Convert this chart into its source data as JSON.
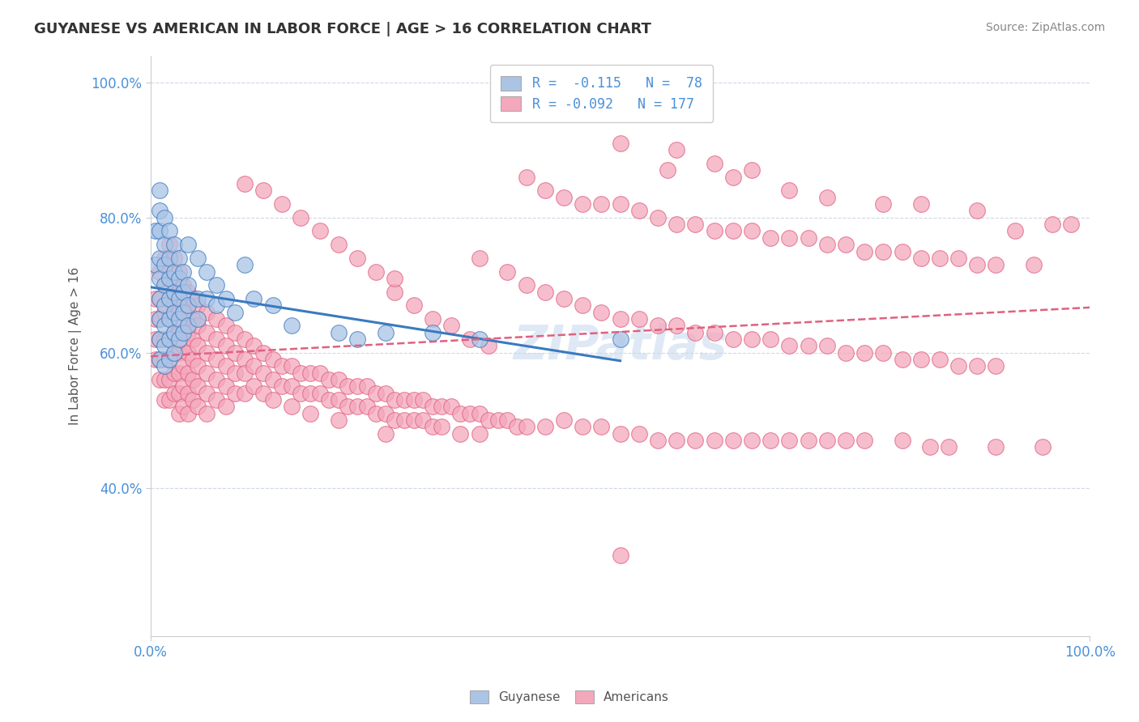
{
  "title": "GUYANESE VS AMERICAN IN LABOR FORCE | AGE > 16 CORRELATION CHART",
  "source": "Source: ZipAtlas.com",
  "ylabel": "In Labor Force | Age > 16",
  "xlim": [
    0.0,
    1.0
  ],
  "ylim": [
    0.18,
    1.04
  ],
  "x_tick_labels": [
    "0.0%",
    "100.0%"
  ],
  "y_tick_labels": [
    "40.0%",
    "60.0%",
    "80.0%",
    "100.0%"
  ],
  "y_tick_positions": [
    0.4,
    0.6,
    0.8,
    1.0
  ],
  "guyanese_color": "#aac4e6",
  "americans_color": "#f4a8bc",
  "trendline_guyanese_color": "#3a7abf",
  "trendline_americans_color": "#e06080",
  "background_color": "#ffffff",
  "grid_color": "#d0d8e8",
  "watermark": "ZIPatlas",
  "guyanese_points": [
    [
      0.005,
      0.78
    ],
    [
      0.005,
      0.73
    ],
    [
      0.01,
      0.84
    ],
    [
      0.01,
      0.81
    ],
    [
      0.01,
      0.78
    ],
    [
      0.01,
      0.74
    ],
    [
      0.01,
      0.71
    ],
    [
      0.01,
      0.68
    ],
    [
      0.01,
      0.65
    ],
    [
      0.01,
      0.62
    ],
    [
      0.01,
      0.59
    ],
    [
      0.015,
      0.8
    ],
    [
      0.015,
      0.76
    ],
    [
      0.015,
      0.73
    ],
    [
      0.015,
      0.7
    ],
    [
      0.015,
      0.67
    ],
    [
      0.015,
      0.64
    ],
    [
      0.015,
      0.61
    ],
    [
      0.015,
      0.58
    ],
    [
      0.02,
      0.78
    ],
    [
      0.02,
      0.74
    ],
    [
      0.02,
      0.71
    ],
    [
      0.02,
      0.68
    ],
    [
      0.02,
      0.65
    ],
    [
      0.02,
      0.62
    ],
    [
      0.02,
      0.59
    ],
    [
      0.025,
      0.76
    ],
    [
      0.025,
      0.72
    ],
    [
      0.025,
      0.69
    ],
    [
      0.025,
      0.66
    ],
    [
      0.025,
      0.63
    ],
    [
      0.025,
      0.6
    ],
    [
      0.03,
      0.74
    ],
    [
      0.03,
      0.71
    ],
    [
      0.03,
      0.68
    ],
    [
      0.03,
      0.65
    ],
    [
      0.03,
      0.62
    ],
    [
      0.035,
      0.72
    ],
    [
      0.035,
      0.69
    ],
    [
      0.035,
      0.66
    ],
    [
      0.035,
      0.63
    ],
    [
      0.04,
      0.76
    ],
    [
      0.04,
      0.7
    ],
    [
      0.04,
      0.67
    ],
    [
      0.04,
      0.64
    ],
    [
      0.05,
      0.74
    ],
    [
      0.05,
      0.68
    ],
    [
      0.05,
      0.65
    ],
    [
      0.06,
      0.72
    ],
    [
      0.06,
      0.68
    ],
    [
      0.07,
      0.7
    ],
    [
      0.07,
      0.67
    ],
    [
      0.08,
      0.68
    ],
    [
      0.09,
      0.66
    ],
    [
      0.1,
      0.73
    ],
    [
      0.11,
      0.68
    ],
    [
      0.13,
      0.67
    ],
    [
      0.15,
      0.64
    ],
    [
      0.2,
      0.63
    ],
    [
      0.22,
      0.62
    ],
    [
      0.25,
      0.63
    ],
    [
      0.3,
      0.63
    ],
    [
      0.35,
      0.62
    ],
    [
      0.5,
      0.62
    ]
  ],
  "americans_points": [
    [
      0.005,
      0.68
    ],
    [
      0.005,
      0.65
    ],
    [
      0.005,
      0.62
    ],
    [
      0.005,
      0.59
    ],
    [
      0.01,
      0.72
    ],
    [
      0.01,
      0.68
    ],
    [
      0.01,
      0.65
    ],
    [
      0.01,
      0.62
    ],
    [
      0.01,
      0.59
    ],
    [
      0.01,
      0.56
    ],
    [
      0.015,
      0.74
    ],
    [
      0.015,
      0.7
    ],
    [
      0.015,
      0.66
    ],
    [
      0.015,
      0.62
    ],
    [
      0.015,
      0.59
    ],
    [
      0.015,
      0.56
    ],
    [
      0.015,
      0.53
    ],
    [
      0.02,
      0.76
    ],
    [
      0.02,
      0.72
    ],
    [
      0.02,
      0.68
    ],
    [
      0.02,
      0.65
    ],
    [
      0.02,
      0.62
    ],
    [
      0.02,
      0.59
    ],
    [
      0.02,
      0.56
    ],
    [
      0.02,
      0.53
    ],
    [
      0.025,
      0.74
    ],
    [
      0.025,
      0.7
    ],
    [
      0.025,
      0.67
    ],
    [
      0.025,
      0.63
    ],
    [
      0.025,
      0.6
    ],
    [
      0.025,
      0.57
    ],
    [
      0.025,
      0.54
    ],
    [
      0.03,
      0.72
    ],
    [
      0.03,
      0.69
    ],
    [
      0.03,
      0.66
    ],
    [
      0.03,
      0.63
    ],
    [
      0.03,
      0.6
    ],
    [
      0.03,
      0.57
    ],
    [
      0.03,
      0.54
    ],
    [
      0.03,
      0.51
    ],
    [
      0.035,
      0.7
    ],
    [
      0.035,
      0.67
    ],
    [
      0.035,
      0.64
    ],
    [
      0.035,
      0.61
    ],
    [
      0.035,
      0.58
    ],
    [
      0.035,
      0.55
    ],
    [
      0.035,
      0.52
    ],
    [
      0.04,
      0.69
    ],
    [
      0.04,
      0.66
    ],
    [
      0.04,
      0.63
    ],
    [
      0.04,
      0.6
    ],
    [
      0.04,
      0.57
    ],
    [
      0.04,
      0.54
    ],
    [
      0.04,
      0.51
    ],
    [
      0.045,
      0.68
    ],
    [
      0.045,
      0.65
    ],
    [
      0.045,
      0.62
    ],
    [
      0.045,
      0.59
    ],
    [
      0.045,
      0.56
    ],
    [
      0.045,
      0.53
    ],
    [
      0.05,
      0.67
    ],
    [
      0.05,
      0.64
    ],
    [
      0.05,
      0.61
    ],
    [
      0.05,
      0.58
    ],
    [
      0.05,
      0.55
    ],
    [
      0.05,
      0.52
    ],
    [
      0.06,
      0.66
    ],
    [
      0.06,
      0.63
    ],
    [
      0.06,
      0.6
    ],
    [
      0.06,
      0.57
    ],
    [
      0.06,
      0.54
    ],
    [
      0.06,
      0.51
    ],
    [
      0.07,
      0.65
    ],
    [
      0.07,
      0.62
    ],
    [
      0.07,
      0.59
    ],
    [
      0.07,
      0.56
    ],
    [
      0.07,
      0.53
    ],
    [
      0.08,
      0.64
    ],
    [
      0.08,
      0.61
    ],
    [
      0.08,
      0.58
    ],
    [
      0.08,
      0.55
    ],
    [
      0.08,
      0.52
    ],
    [
      0.09,
      0.63
    ],
    [
      0.09,
      0.6
    ],
    [
      0.09,
      0.57
    ],
    [
      0.09,
      0.54
    ],
    [
      0.1,
      0.62
    ],
    [
      0.1,
      0.59
    ],
    [
      0.1,
      0.57
    ],
    [
      0.1,
      0.54
    ],
    [
      0.11,
      0.61
    ],
    [
      0.11,
      0.58
    ],
    [
      0.11,
      0.55
    ],
    [
      0.12,
      0.6
    ],
    [
      0.12,
      0.57
    ],
    [
      0.12,
      0.54
    ],
    [
      0.13,
      0.59
    ],
    [
      0.13,
      0.56
    ],
    [
      0.13,
      0.53
    ],
    [
      0.14,
      0.58
    ],
    [
      0.14,
      0.55
    ],
    [
      0.15,
      0.58
    ],
    [
      0.15,
      0.55
    ],
    [
      0.15,
      0.52
    ],
    [
      0.16,
      0.57
    ],
    [
      0.16,
      0.54
    ],
    [
      0.17,
      0.57
    ],
    [
      0.17,
      0.54
    ],
    [
      0.17,
      0.51
    ],
    [
      0.18,
      0.57
    ],
    [
      0.18,
      0.54
    ],
    [
      0.19,
      0.56
    ],
    [
      0.19,
      0.53
    ],
    [
      0.2,
      0.56
    ],
    [
      0.2,
      0.53
    ],
    [
      0.2,
      0.5
    ],
    [
      0.21,
      0.55
    ],
    [
      0.21,
      0.52
    ],
    [
      0.22,
      0.55
    ],
    [
      0.22,
      0.52
    ],
    [
      0.23,
      0.55
    ],
    [
      0.23,
      0.52
    ],
    [
      0.24,
      0.54
    ],
    [
      0.24,
      0.51
    ],
    [
      0.25,
      0.54
    ],
    [
      0.25,
      0.51
    ],
    [
      0.25,
      0.48
    ],
    [
      0.26,
      0.53
    ],
    [
      0.26,
      0.5
    ],
    [
      0.27,
      0.53
    ],
    [
      0.27,
      0.5
    ],
    [
      0.28,
      0.53
    ],
    [
      0.28,
      0.5
    ],
    [
      0.29,
      0.53
    ],
    [
      0.29,
      0.5
    ],
    [
      0.3,
      0.52
    ],
    [
      0.3,
      0.49
    ],
    [
      0.31,
      0.52
    ],
    [
      0.31,
      0.49
    ],
    [
      0.32,
      0.52
    ],
    [
      0.33,
      0.51
    ],
    [
      0.33,
      0.48
    ],
    [
      0.34,
      0.51
    ],
    [
      0.35,
      0.51
    ],
    [
      0.35,
      0.48
    ],
    [
      0.36,
      0.5
    ],
    [
      0.37,
      0.5
    ],
    [
      0.38,
      0.5
    ],
    [
      0.39,
      0.49
    ],
    [
      0.4,
      0.49
    ],
    [
      0.42,
      0.49
    ],
    [
      0.44,
      0.5
    ],
    [
      0.46,
      0.49
    ],
    [
      0.48,
      0.49
    ],
    [
      0.5,
      0.48
    ],
    [
      0.5,
      0.3
    ],
    [
      0.52,
      0.48
    ],
    [
      0.54,
      0.47
    ],
    [
      0.56,
      0.47
    ],
    [
      0.58,
      0.47
    ],
    [
      0.6,
      0.47
    ],
    [
      0.62,
      0.47
    ],
    [
      0.64,
      0.47
    ],
    [
      0.66,
      0.47
    ],
    [
      0.68,
      0.47
    ],
    [
      0.7,
      0.47
    ],
    [
      0.72,
      0.47
    ],
    [
      0.74,
      0.47
    ],
    [
      0.76,
      0.47
    ],
    [
      0.8,
      0.47
    ],
    [
      0.83,
      0.46
    ],
    [
      0.85,
      0.46
    ],
    [
      0.9,
      0.46
    ],
    [
      0.95,
      0.46
    ],
    [
      0.4,
      0.86
    ],
    [
      0.42,
      0.84
    ],
    [
      0.44,
      0.83
    ],
    [
      0.46,
      0.82
    ],
    [
      0.48,
      0.82
    ],
    [
      0.5,
      0.82
    ],
    [
      0.52,
      0.81
    ],
    [
      0.54,
      0.8
    ],
    [
      0.56,
      0.79
    ],
    [
      0.58,
      0.79
    ],
    [
      0.6,
      0.78
    ],
    [
      0.62,
      0.78
    ],
    [
      0.64,
      0.78
    ],
    [
      0.66,
      0.77
    ],
    [
      0.68,
      0.77
    ],
    [
      0.7,
      0.77
    ],
    [
      0.72,
      0.76
    ],
    [
      0.74,
      0.76
    ],
    [
      0.76,
      0.75
    ],
    [
      0.78,
      0.75
    ],
    [
      0.8,
      0.75
    ],
    [
      0.82,
      0.74
    ],
    [
      0.84,
      0.74
    ],
    [
      0.86,
      0.74
    ],
    [
      0.88,
      0.73
    ],
    [
      0.9,
      0.73
    ],
    [
      0.92,
      0.78
    ],
    [
      0.94,
      0.73
    ],
    [
      0.96,
      0.79
    ],
    [
      0.98,
      0.79
    ],
    [
      0.55,
      0.87
    ],
    [
      0.62,
      0.86
    ],
    [
      0.68,
      0.84
    ],
    [
      0.72,
      0.83
    ],
    [
      0.78,
      0.82
    ],
    [
      0.82,
      0.82
    ],
    [
      0.88,
      0.81
    ],
    [
      0.5,
      0.91
    ],
    [
      0.56,
      0.9
    ],
    [
      0.6,
      0.88
    ],
    [
      0.64,
      0.87
    ],
    [
      0.35,
      0.74
    ],
    [
      0.38,
      0.72
    ],
    [
      0.4,
      0.7
    ],
    [
      0.42,
      0.69
    ],
    [
      0.44,
      0.68
    ],
    [
      0.46,
      0.67
    ],
    [
      0.48,
      0.66
    ],
    [
      0.5,
      0.65
    ],
    [
      0.52,
      0.65
    ],
    [
      0.54,
      0.64
    ],
    [
      0.56,
      0.64
    ],
    [
      0.58,
      0.63
    ],
    [
      0.6,
      0.63
    ],
    [
      0.62,
      0.62
    ],
    [
      0.64,
      0.62
    ],
    [
      0.66,
      0.62
    ],
    [
      0.68,
      0.61
    ],
    [
      0.7,
      0.61
    ],
    [
      0.72,
      0.61
    ],
    [
      0.74,
      0.6
    ],
    [
      0.76,
      0.6
    ],
    [
      0.78,
      0.6
    ],
    [
      0.8,
      0.59
    ],
    [
      0.82,
      0.59
    ],
    [
      0.84,
      0.59
    ],
    [
      0.86,
      0.58
    ],
    [
      0.88,
      0.58
    ],
    [
      0.9,
      0.58
    ],
    [
      0.26,
      0.69
    ],
    [
      0.28,
      0.67
    ],
    [
      0.3,
      0.65
    ],
    [
      0.32,
      0.64
    ],
    [
      0.34,
      0.62
    ],
    [
      0.36,
      0.61
    ],
    [
      0.2,
      0.76
    ],
    [
      0.22,
      0.74
    ],
    [
      0.24,
      0.72
    ],
    [
      0.26,
      0.71
    ],
    [
      0.14,
      0.82
    ],
    [
      0.16,
      0.8
    ],
    [
      0.18,
      0.78
    ],
    [
      0.1,
      0.85
    ],
    [
      0.12,
      0.84
    ]
  ]
}
